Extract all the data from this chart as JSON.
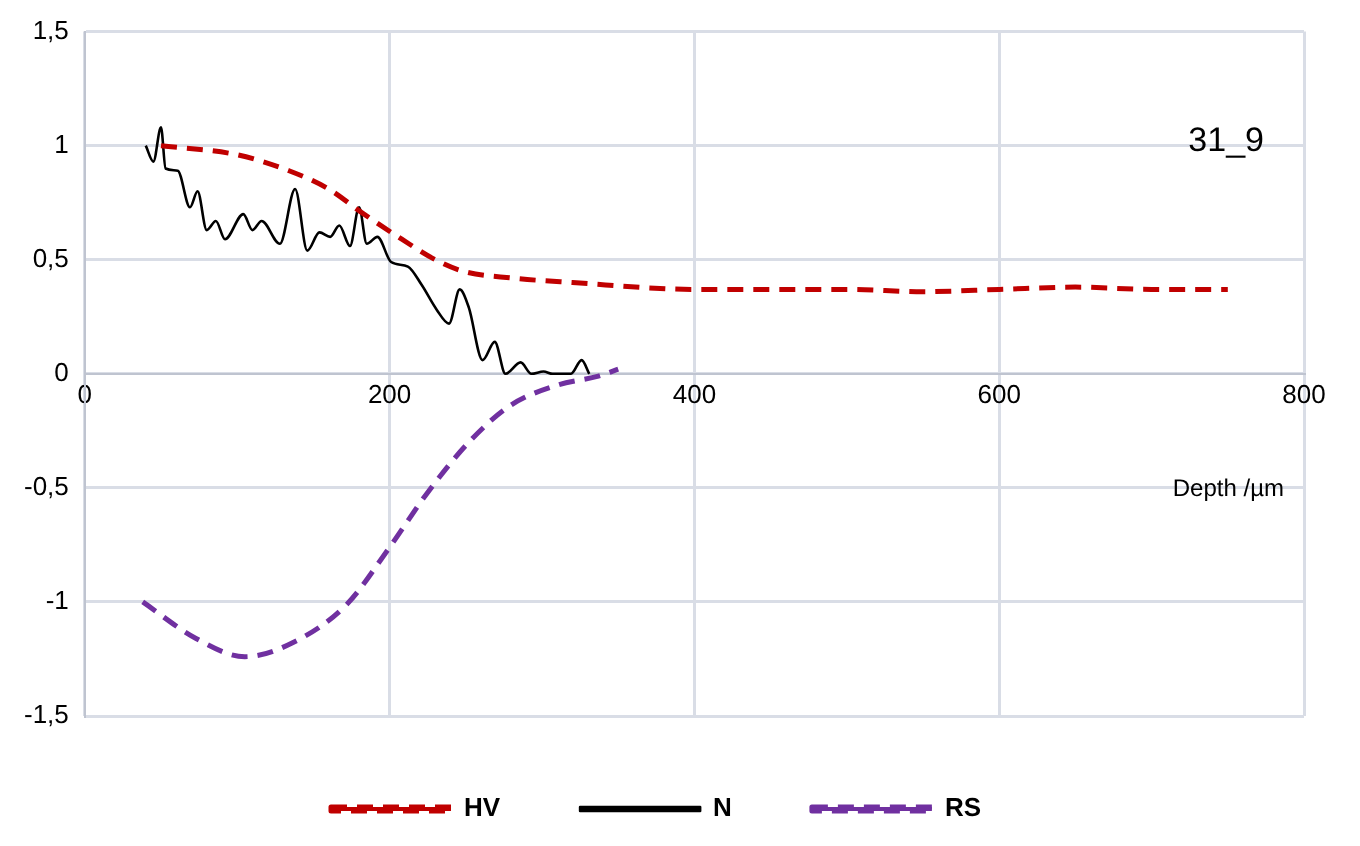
{
  "chart_data": {
    "type": "line",
    "xlabel": "Depth /µm",
    "annotations": [
      "31_9"
    ],
    "xlim": [
      0,
      800
    ],
    "xticks": [
      0,
      200,
      400,
      600,
      800
    ],
    "ylim": [
      -1.5,
      1.5
    ],
    "yticks": [
      {
        "value": -1.5,
        "label": "-1,5"
      },
      {
        "value": -1,
        "label": "-1"
      },
      {
        "value": -0.5,
        "label": "-0,5"
      },
      {
        "value": 0,
        "label": "0"
      },
      {
        "value": 0.5,
        "label": "0,5"
      },
      {
        "value": 1,
        "label": "1"
      },
      {
        "value": 1.5,
        "label": "1,5"
      }
    ],
    "grid": true,
    "legend": "bottom",
    "marker": "none",
    "series": [
      {
        "name": "HV",
        "color": "#c00000",
        "line_style": "dashed",
        "x": [
          50,
          100,
          134,
          160,
          181,
          208,
          230,
          248,
          280,
          320,
          400,
          500,
          550,
          600,
          650,
          700,
          750
        ],
        "values": [
          1.0,
          0.96,
          0.89,
          0.81,
          0.71,
          0.59,
          0.5,
          0.45,
          0.42,
          0.4,
          0.37,
          0.37,
          0.36,
          0.37,
          0.38,
          0.37,
          0.37
        ]
      },
      {
        "name": "N",
        "color": "#000000",
        "line_style": "solid",
        "x": [
          40,
          45,
          50,
          53,
          61,
          69,
          74,
          80,
          86,
          92,
          104,
          110,
          116,
          128,
          138,
          146,
          154,
          161,
          167,
          174,
          180,
          185,
          192,
          201,
          212,
          221,
          231,
          239,
          246,
          252,
          261,
          269,
          276,
          286,
          293,
          301,
          307,
          319,
          326,
          331
        ],
        "values": [
          1.0,
          0.93,
          1.08,
          0.9,
          0.89,
          0.73,
          0.8,
          0.63,
          0.67,
          0.59,
          0.7,
          0.63,
          0.67,
          0.57,
          0.81,
          0.54,
          0.62,
          0.6,
          0.65,
          0.56,
          0.73,
          0.57,
          0.6,
          0.49,
          0.47,
          0.39,
          0.28,
          0.22,
          0.37,
          0.29,
          0.06,
          0.14,
          0.0,
          0.05,
          0.0,
          0.01,
          0.0,
          0.0,
          0.06,
          0.0
        ]
      },
      {
        "name": "RS",
        "color": "#7030a0",
        "line_style": "dashed",
        "x": [
          38,
          73,
          105,
          136,
          172,
          199,
          225,
          252,
          279,
          310,
          337,
          350
        ],
        "values": [
          -1.0,
          -1.16,
          -1.24,
          -1.18,
          -1.01,
          -0.77,
          -0.52,
          -0.3,
          -0.14,
          -0.05,
          -0.01,
          0.02
        ]
      }
    ]
  }
}
